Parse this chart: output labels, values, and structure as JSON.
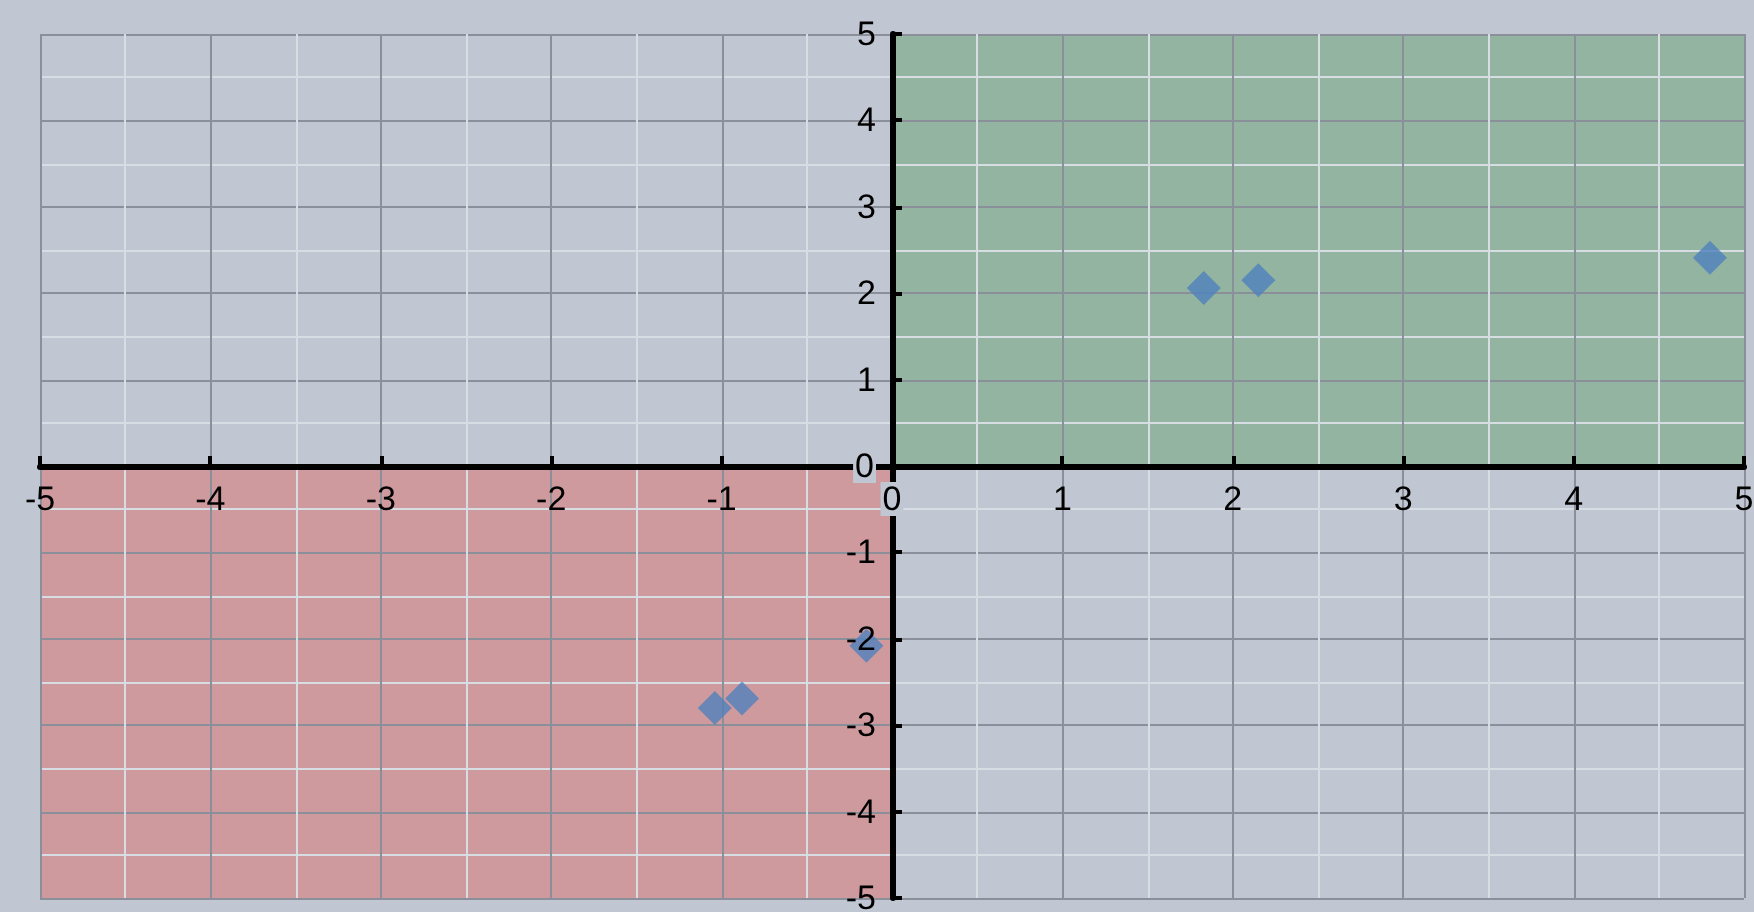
{
  "chart_data": {
    "type": "scatter",
    "x": [
      1.83,
      2.15,
      4.8,
      -1.04,
      -0.88,
      -0.15
    ],
    "series": [
      {
        "color": "#4f81bd",
        "values": [
          2.06,
          2.15,
          2.41,
          -2.8,
          -2.69,
          -2.08
        ]
      }
    ],
    "xlim": [
      -5,
      5
    ],
    "ylim": [
      -5,
      5
    ],
    "xticks": [
      -5,
      -4,
      -3,
      -2,
      -1,
      0,
      1,
      2,
      3,
      4,
      5
    ],
    "yticks": [
      -5,
      -4,
      -3,
      -2,
      -1,
      0,
      1,
      2,
      3,
      4,
      5
    ],
    "grid": true,
    "marker": "diamond"
  }
}
